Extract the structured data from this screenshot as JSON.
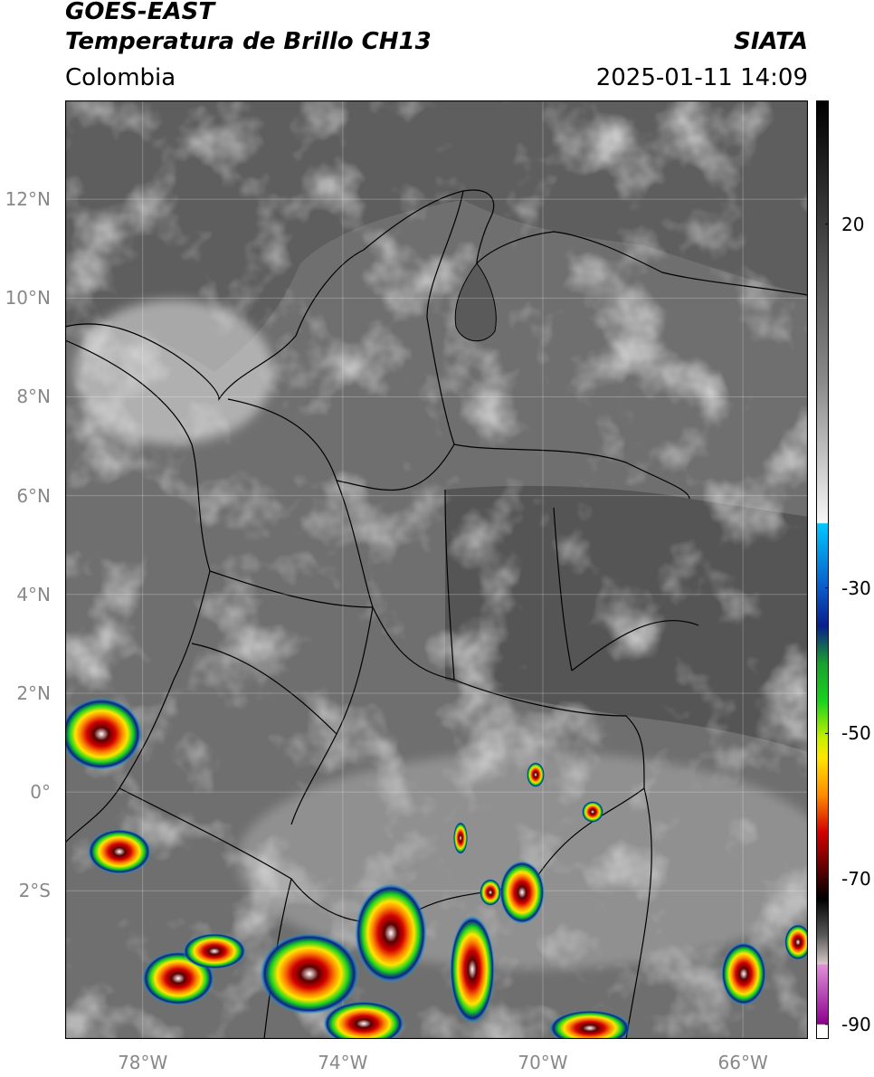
{
  "header": {
    "satellite": "GOES-EAST",
    "product": "Temperatura de Brillo CH13",
    "brand": "SIATA",
    "region": "Colombia",
    "timestamp": "2025-01-11 14:09"
  },
  "axes": {
    "lat_labels": [
      "12°N",
      "10°N",
      "8°N",
      "6°N",
      "4°N",
      "2°N",
      "0°",
      "2°S"
    ],
    "lat_values": [
      12,
      10,
      8,
      6,
      4,
      2,
      0,
      -2
    ],
    "lon_labels": [
      "78°W",
      "74°W",
      "70°W",
      "66°W"
    ],
    "lon_values": [
      -78,
      -74,
      -70,
      -66
    ],
    "lon_range": [
      -79.55,
      -64.7
    ],
    "lat_range": [
      -5.0,
      14.0
    ],
    "grid": true
  },
  "colorbar": {
    "tick_labels": [
      "20",
      "-30",
      "-50",
      "-70",
      "-90"
    ],
    "tick_values": [
      20,
      -30,
      -50,
      -70,
      -90
    ],
    "range": [
      -92,
      37
    ],
    "colors": {
      "warm_dark": "#1a1a1a",
      "warm_light": "#f2f2f2",
      "cyan": "#00c8ff",
      "blue": "#0a1f8c",
      "green": "#19d21e",
      "yellow": "#ffe600",
      "orange": "#ff8c00",
      "red": "#d20000",
      "dark_red": "#5a0000",
      "black": "#000000",
      "magenta": "#d25ad2",
      "white": "#ffffff"
    }
  },
  "map": {
    "background": "#5a5a5a",
    "land_border_color": "#000000"
  }
}
